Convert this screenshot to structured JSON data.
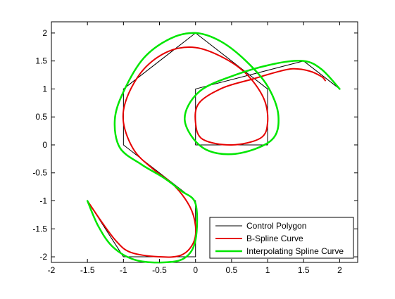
{
  "chart_data": {
    "type": "line",
    "title": "",
    "xlabel": "",
    "ylabel": "",
    "xlim": [
      -2,
      2.25
    ],
    "ylim": [
      -2.1,
      2.2
    ],
    "xticks": [
      -2,
      -1.5,
      -1,
      -0.5,
      0,
      0.5,
      1,
      1.5,
      2
    ],
    "xtick_labels": [
      "-2",
      "-1.5",
      "-1",
      "-0.5",
      "0",
      "0.5",
      "1",
      "1.5",
      "2"
    ],
    "yticks": [
      -2,
      -1.5,
      -1,
      -0.5,
      0,
      0.5,
      1,
      1.5,
      2
    ],
    "ytick_labels": [
      "-2",
      "-1.5",
      "-1",
      "-0.5",
      "0",
      "0.5",
      "1",
      "1.5",
      "2"
    ],
    "grid": false,
    "legend_position": "bottom-right",
    "series": [
      {
        "name": "Control Polygon",
        "color": "#000000",
        "points": [
          [
            -1.5,
            -1
          ],
          [
            -1,
            -2
          ],
          [
            0,
            -2
          ],
          [
            0,
            -1
          ],
          [
            -1,
            0
          ],
          [
            -1,
            1
          ],
          [
            0,
            2
          ],
          [
            1,
            1
          ],
          [
            1,
            0
          ],
          [
            0,
            0
          ],
          [
            0,
            1
          ],
          [
            1.5,
            1.5
          ],
          [
            2,
            1
          ]
        ]
      },
      {
        "name": "B-Spline Curve",
        "color": "#e60000",
        "points": [
          [
            -1.5,
            -1
          ],
          [
            -1.3,
            -1.38
          ],
          [
            -1.1,
            -1.72
          ],
          [
            -0.9,
            -1.92
          ],
          [
            -0.5,
            -2
          ],
          [
            -0.2,
            -1.97
          ],
          [
            -0.03,
            -1.75
          ],
          [
            0,
            -1.45
          ],
          [
            -0.08,
            -1.1
          ],
          [
            -0.3,
            -0.72
          ],
          [
            -0.58,
            -0.44
          ],
          [
            -0.85,
            -0.1
          ],
          [
            -1,
            0.4
          ],
          [
            -0.95,
            0.85
          ],
          [
            -0.72,
            1.35
          ],
          [
            -0.38,
            1.67
          ],
          [
            0,
            1.74
          ],
          [
            0.4,
            1.55
          ],
          [
            0.72,
            1.25
          ],
          [
            0.95,
            0.82
          ],
          [
            1,
            0.4
          ],
          [
            0.9,
            0.12
          ],
          [
            0.5,
            0
          ],
          [
            0.1,
            0.1
          ],
          [
            0,
            0.4
          ],
          [
            0.05,
            0.75
          ],
          [
            0.38,
            1.02
          ],
          [
            0.8,
            1.18
          ],
          [
            1.12,
            1.3
          ],
          [
            1.35,
            1.36
          ],
          [
            1.58,
            1.32
          ],
          [
            1.75,
            1.22
          ],
          [
            1.8,
            1.15
          ]
        ]
      },
      {
        "name": "Interpolating Spline Curve",
        "color": "#00e600",
        "points": [
          [
            -1.5,
            -1
          ],
          [
            -1.35,
            -1.45
          ],
          [
            -1.15,
            -1.82
          ],
          [
            -0.85,
            -2.05
          ],
          [
            -0.45,
            -2.1
          ],
          [
            -0.15,
            -2.02
          ],
          [
            0,
            -1.7
          ],
          [
            0,
            -1.05
          ],
          [
            -0.2,
            -0.82
          ],
          [
            -0.45,
            -0.58
          ],
          [
            -0.75,
            -0.35
          ],
          [
            -1.05,
            -0.05
          ],
          [
            -1.12,
            0.45
          ],
          [
            -1,
            0.95
          ],
          [
            -0.72,
            1.55
          ],
          [
            -0.35,
            1.9
          ],
          [
            0,
            2
          ],
          [
            0.35,
            1.85
          ],
          [
            0.7,
            1.5
          ],
          [
            1,
            1.05
          ],
          [
            1.15,
            0.52
          ],
          [
            1.05,
            0.08
          ],
          [
            0.55,
            -0.16
          ],
          [
            0.1,
            -0.05
          ],
          [
            -0.15,
            0.45
          ],
          [
            0.05,
            0.95
          ],
          [
            0.55,
            1.25
          ],
          [
            1.1,
            1.45
          ],
          [
            1.5,
            1.5
          ],
          [
            1.75,
            1.35
          ],
          [
            2,
            1
          ]
        ]
      }
    ]
  }
}
